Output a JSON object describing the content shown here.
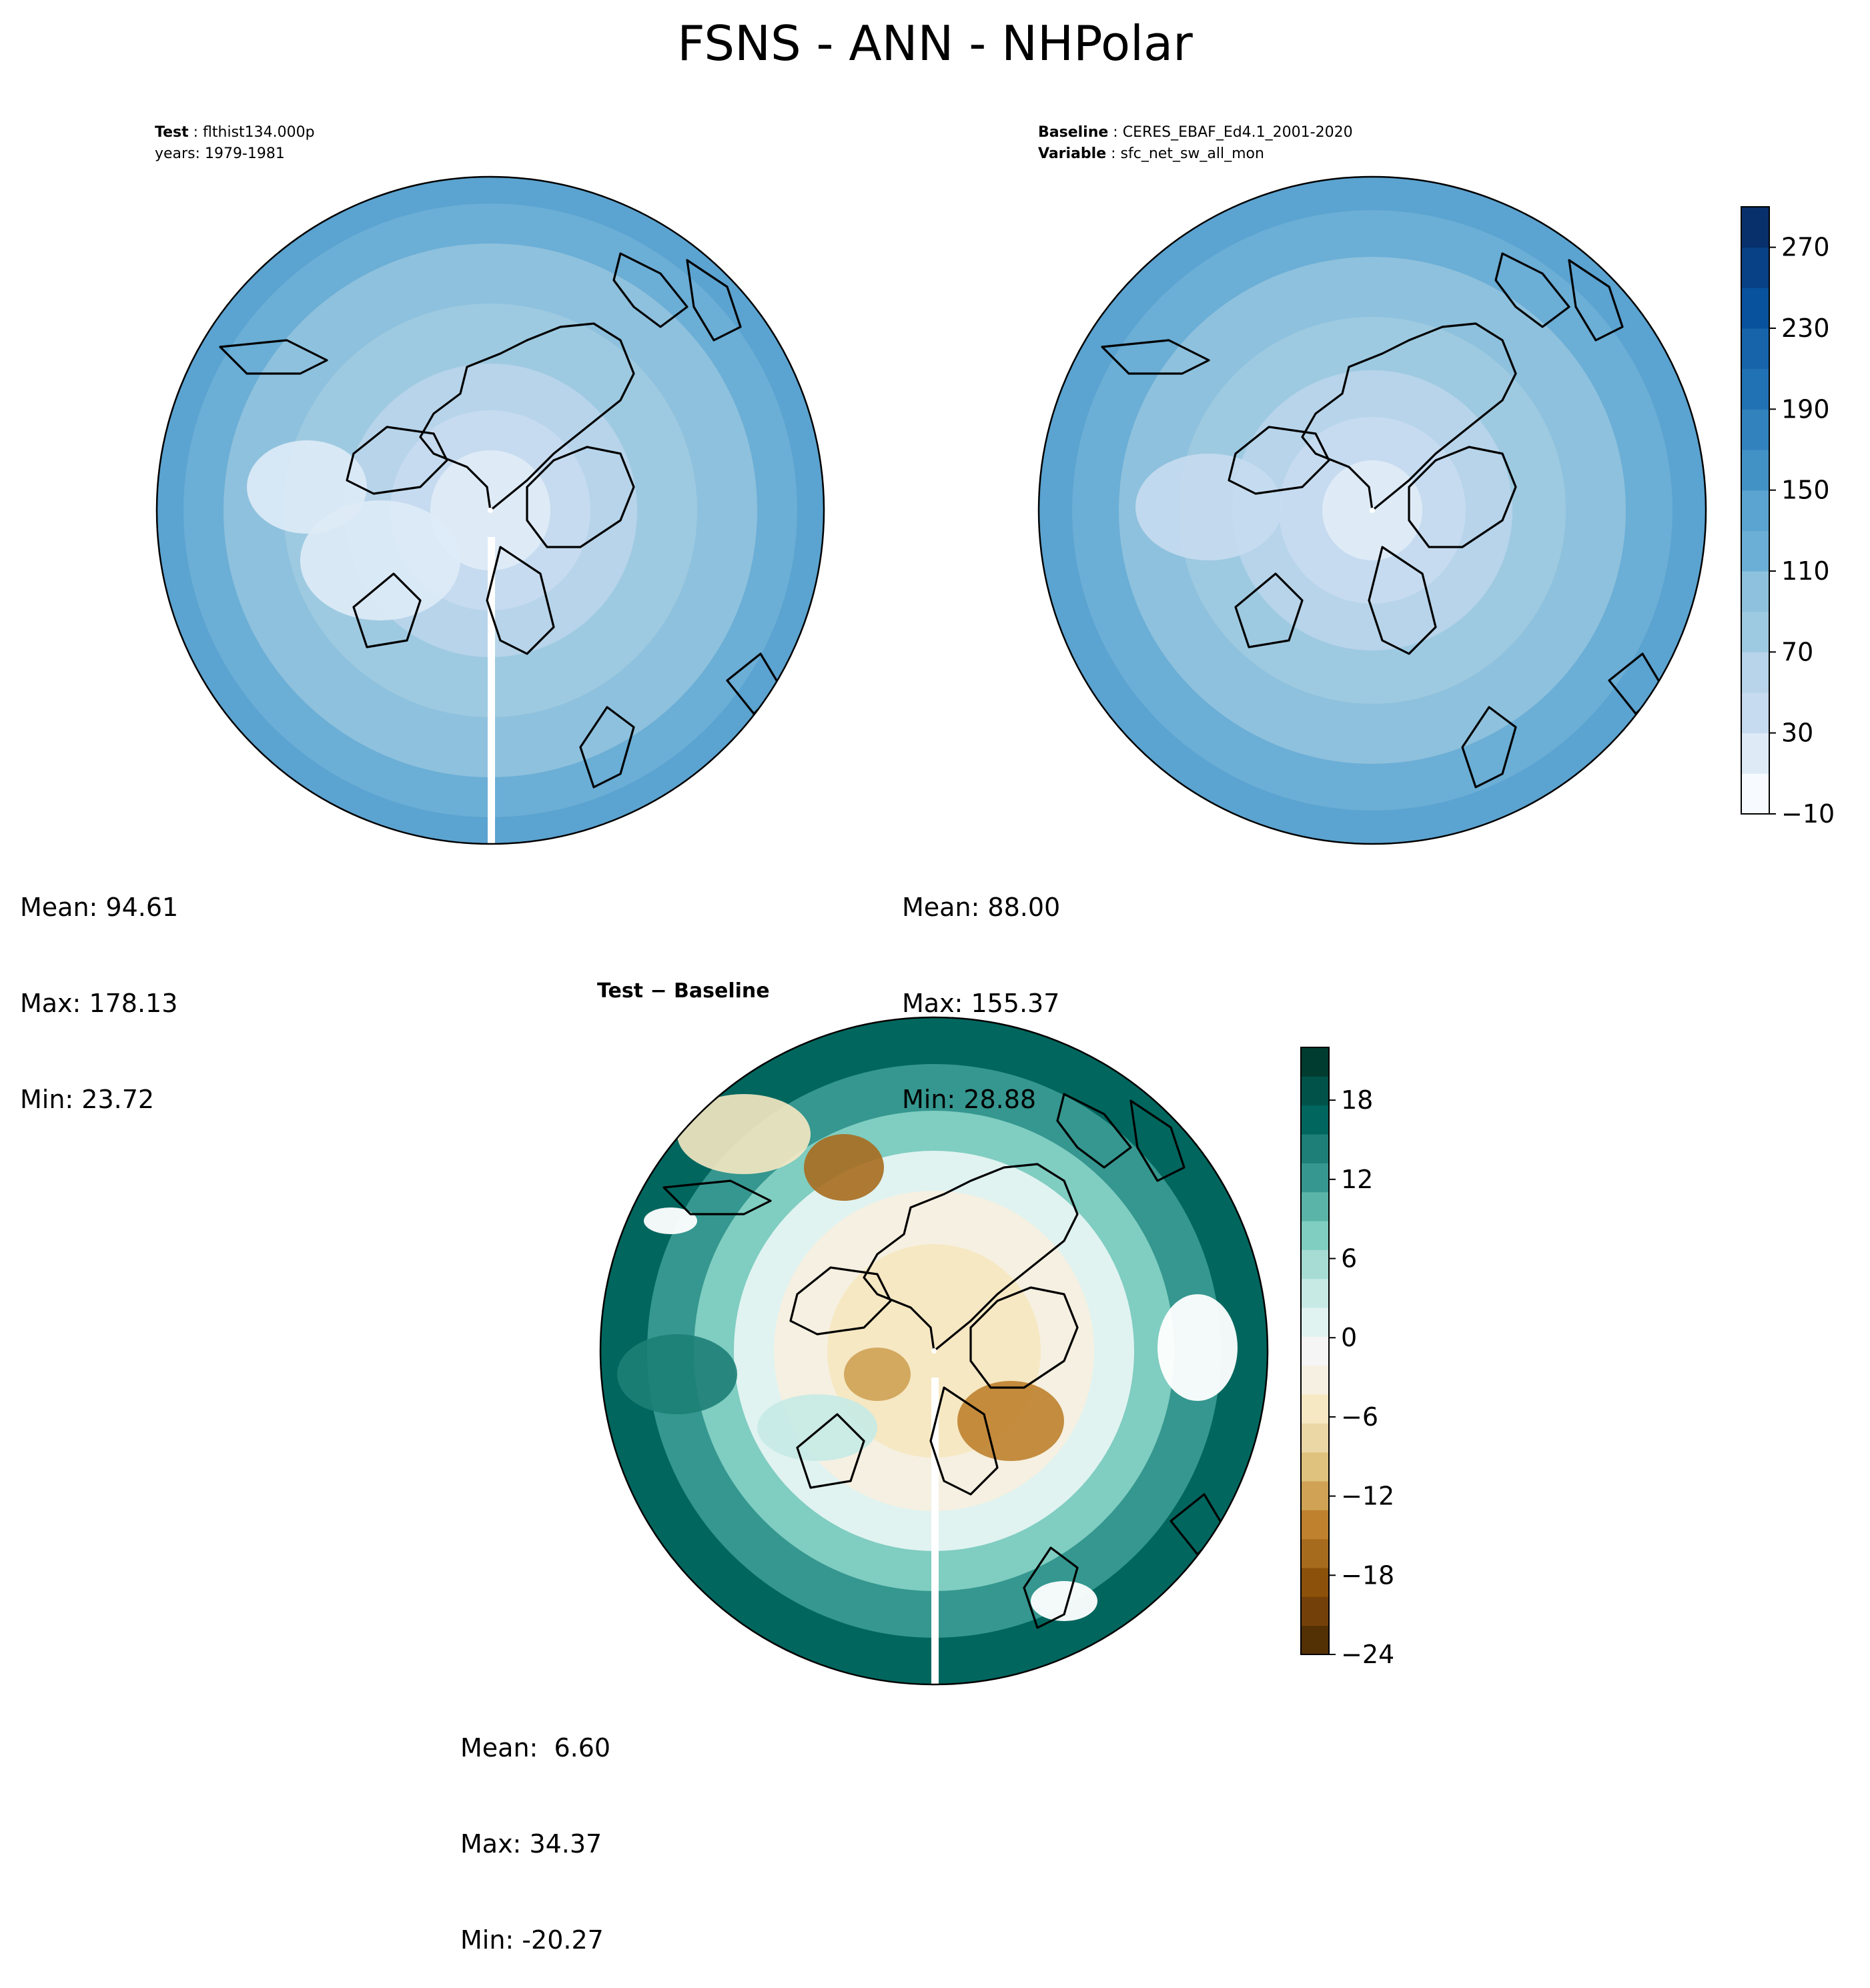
{
  "title": "FSNS - ANN - NHPolar",
  "panels": [
    {
      "id": "test",
      "label_key": "Test",
      "label_value": "flthist134.000p",
      "line2_key": "",
      "line2_value": "years: 1979-1981",
      "stats": {
        "mean": "Mean: 94.61",
        "max": "Max: 178.13",
        "min": "Min: 23.72"
      }
    },
    {
      "id": "baseline",
      "label_key": "Baseline",
      "label_value": "CERES_EBAF_Ed4.1_2001-2020",
      "line2_key": "Variable",
      "line2_value": "sfc_net_sw_all_mon",
      "stats": {
        "mean": "Mean: 88.00",
        "max": "Max: 155.37",
        "min": "Min: 28.88"
      }
    },
    {
      "id": "diff",
      "label_key": "Test − Baseline",
      "stats": {
        "mean": "Mean:  6.60",
        "max": "Max: 34.37",
        "min": "Min: -20.27"
      }
    }
  ],
  "colorbars": {
    "main": {
      "ticks": [
        "270",
        "230",
        "190",
        "150",
        "110",
        "70",
        "30",
        "−10"
      ],
      "range": [
        -10,
        290
      ],
      "colors": [
        "#f7fbff",
        "#deebf7",
        "#c6dbef",
        "#b7d4ea",
        "#9ecae1",
        "#8ec1dd",
        "#6baed6",
        "#5ba3d0",
        "#4292c6",
        "#3182bd",
        "#2171b5",
        "#1764ab",
        "#08519c",
        "#084185",
        "#08306b"
      ]
    },
    "diff": {
      "ticks": [
        "18",
        "12",
        "6",
        "0",
        "−6",
        "−12",
        "−18",
        "−24"
      ],
      "range": [
        -24,
        22
      ],
      "colors": [
        "#543005",
        "#744009",
        "#8c510a",
        "#a76b1e",
        "#bf812d",
        "#cfa255",
        "#dfc27d",
        "#ebd7a6",
        "#f6e8c3",
        "#f5f0e1",
        "#f5f5f5",
        "#e0f3f1",
        "#c7eae5",
        "#a6dcd4",
        "#80cdc1",
        "#5ab4a8",
        "#35978f",
        "#1d7f77",
        "#01665e",
        "#01534a",
        "#003c30"
      ]
    }
  },
  "chart_data": [
    {
      "type": "heatmap",
      "projection": "north-polar-stereographic",
      "field": "FSNS",
      "period": "ANN",
      "region": "NHPolar",
      "panel": "Test",
      "mean": 94.61,
      "max": 178.13,
      "min": 23.72,
      "colorbar_range": [
        -10,
        290
      ]
    },
    {
      "type": "heatmap",
      "projection": "north-polar-stereographic",
      "field": "FSNS",
      "period": "ANN",
      "region": "NHPolar",
      "panel": "Baseline",
      "mean": 88.0,
      "max": 155.37,
      "min": 28.88,
      "colorbar_range": [
        -10,
        290
      ]
    },
    {
      "type": "heatmap",
      "projection": "north-polar-stereographic",
      "field": "FSNS",
      "period": "ANN",
      "region": "NHPolar",
      "panel": "Test - Baseline",
      "mean": 6.6,
      "max": 34.37,
      "min": -20.27,
      "colorbar_range": [
        -24,
        22
      ]
    }
  ]
}
